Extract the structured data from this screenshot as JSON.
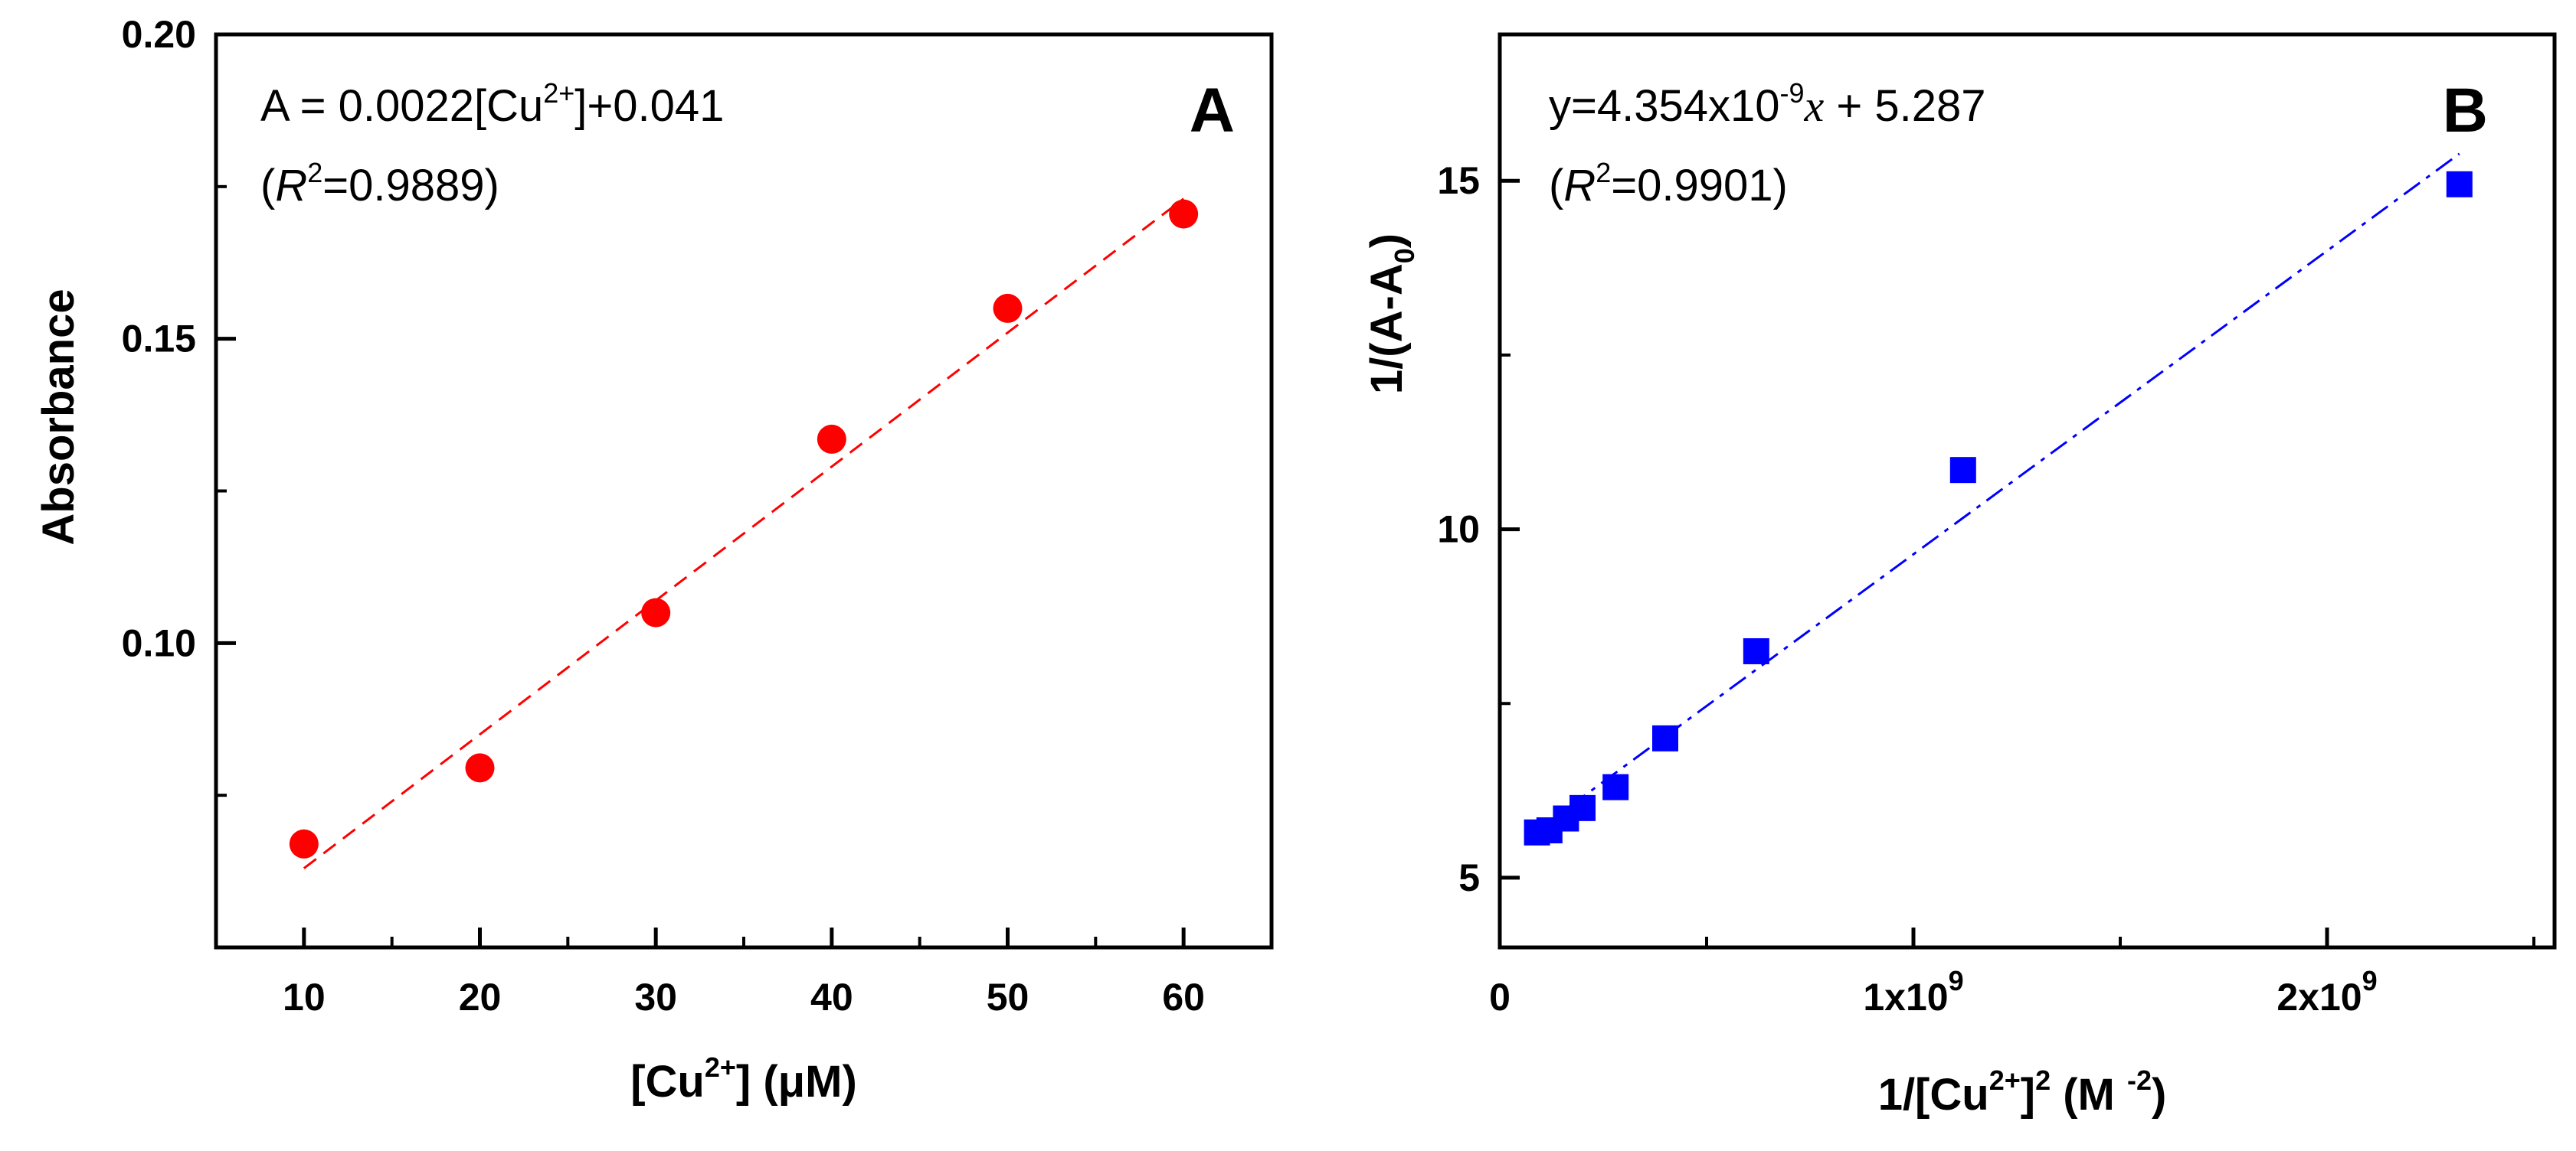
{
  "chart_data": [
    {
      "id": "A",
      "type": "scatter",
      "panel_label": "A",
      "x": [
        10,
        20,
        30,
        40,
        50,
        60
      ],
      "y": [
        0.067,
        0.0795,
        0.105,
        0.1335,
        0.155,
        0.1705
      ],
      "xlim": [
        5,
        65
      ],
      "ylim": [
        0.05,
        0.2
      ],
      "xticks": [
        10,
        20,
        30,
        40,
        50,
        60
      ],
      "xtick_labels": [
        "10",
        "20",
        "30",
        "40",
        "50",
        "60"
      ],
      "yticks": [
        0.1,
        0.15,
        0.2
      ],
      "ytick_labels": [
        "0.10",
        "0.15",
        "0.20"
      ],
      "ylabel": "Absorbance",
      "xlabel": {
        "pre": "[Cu",
        "sup": "2+",
        "post": "] (μM)"
      },
      "equation": {
        "pre": "A = 0.0022[Cu",
        "sup": "2+",
        "post": "]+0.041"
      },
      "r2": {
        "open": "(",
        "r": "R",
        "sup": "2",
        "value": "=0.9889)"
      },
      "fit": {
        "slope": 0.0022,
        "intercept": 0.041,
        "x_range": [
          10,
          60
        ],
        "style": "dashed",
        "color": "#ff0000"
      },
      "marker": {
        "shape": "circle",
        "color": "#ff0000"
      }
    },
    {
      "id": "B",
      "type": "scatter",
      "panel_label": "B",
      "x": [
        90000000,
        120000000,
        160000000,
        200000000,
        280000000,
        400000000,
        620000000,
        1120000000,
        2320000000
      ],
      "y": [
        5.65,
        5.68,
        5.85,
        6.0,
        6.3,
        7.0,
        8.25,
        10.85,
        14.95
      ],
      "xlim": [
        0,
        2550000000
      ],
      "ylim": [
        4.0,
        17.1
      ],
      "xticks": [
        0,
        1000000000,
        2000000000
      ],
      "xtick_labels": [
        "0",
        "1x10",
        "2x10"
      ],
      "xtick_sups": [
        "",
        "9",
        "9"
      ],
      "yticks": [
        5,
        10,
        15
      ],
      "ytick_labels": [
        "5",
        "10",
        "15"
      ],
      "ylabel": {
        "pre": "1/(A-A",
        "sub": "0",
        "post": ")"
      },
      "xlabel": {
        "pre": "1/[Cu",
        "sup1": "2+",
        "mid": "]",
        "sup2": "2",
        "post1": " (M ",
        "sup3": "-2",
        "post2": ")"
      },
      "equation": {
        "pre": "y=4.354x10",
        "sup": "-9",
        "x": "x",
        "post": " + 5.287"
      },
      "r2": {
        "open": "(",
        "r": "R",
        "sup": "2",
        "value": "=0.9901)"
      },
      "fit": {
        "slope": 4.354e-09,
        "intercept": 5.287,
        "x_range": [
          90000000,
          2320000000
        ],
        "style": "dash-dot",
        "color": "#0000ff"
      },
      "marker": {
        "shape": "square",
        "color": "#0000ff"
      }
    }
  ]
}
